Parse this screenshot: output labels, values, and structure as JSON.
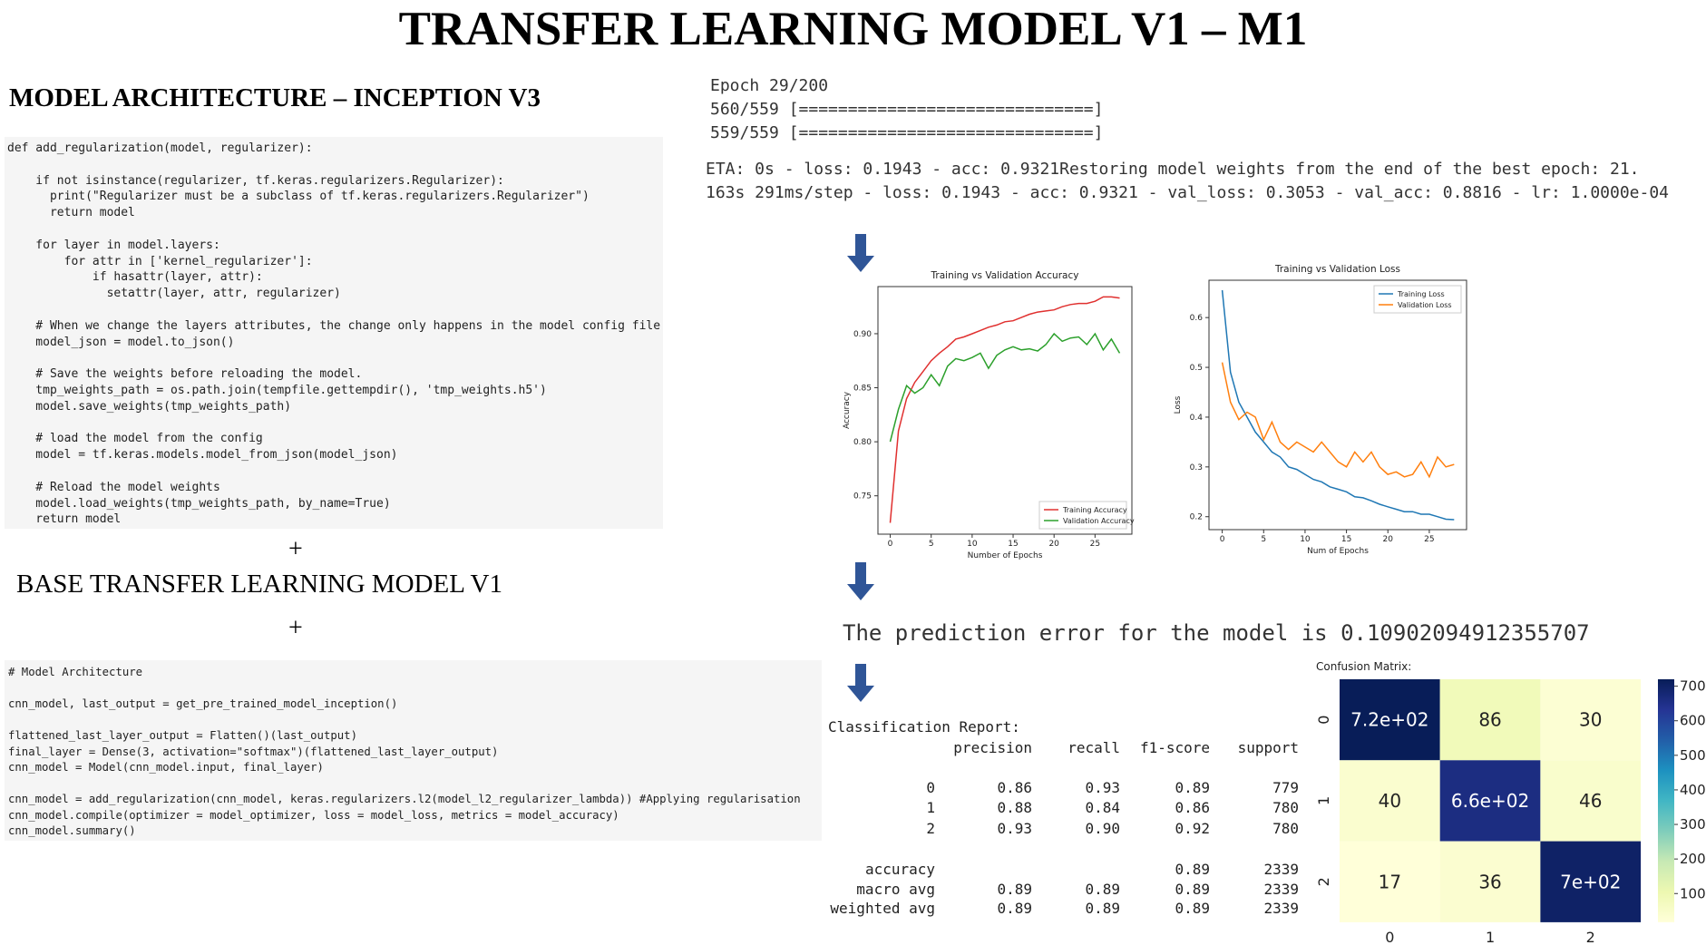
{
  "title": "TRANSFER LEARNING MODEL V1 – M1",
  "left": {
    "heading": "MODEL ARCHITECTURE – INCEPTION V3",
    "code1": "def add_regularization(model, regularizer):\n\n    if not isinstance(regularizer, tf.keras.regularizers.Regularizer):\n      print(\"Regularizer must be a subclass of tf.keras.regularizers.Regularizer\")\n      return model\n\n    for layer in model.layers:\n        for attr in ['kernel_regularizer']:\n            if hasattr(layer, attr):\n              setattr(layer, attr, regularizer)\n\n    # When we change the layers attributes, the change only happens in the model config file\n    model_json = model.to_json()\n\n    # Save the weights before reloading the model.\n    tmp_weights_path = os.path.join(tempfile.gettempdir(), 'tmp_weights.h5')\n    model.save_weights(tmp_weights_path)\n\n    # load the model from the config\n    model = tf.keras.models.model_from_json(model_json)\n\n    # Reload the model weights\n    model.load_weights(tmp_weights_path, by_name=True)\n    return model",
    "plus1": "+",
    "base": "BASE TRANSFER LEARNING MODEL V1",
    "plus2": "+",
    "code2": "# Model Architecture\n\ncnn_model, last_output = get_pre_trained_model_inception()\n\nflattened_last_layer_output = Flatten()(last_output)\nfinal_layer = Dense(3, activation=\"softmax\")(flattened_last_layer_output)\ncnn_model = Model(cnn_model.input, final_layer)\n\ncnn_model = add_regularization(cnn_model, keras.regularizers.l2(model_l2_regularizer_lambda)) #Applying regularisation\ncnn_model.compile(optimizer = model_optimizer, loss = model_loss, metrics = model_accuracy)\ncnn_model.summary()"
  },
  "log": [
    "Epoch 29/200",
    "560/559 [==============================]",
    "559/559 [==============================]",
    "ETA: 0s - loss: 0.1943 - acc: 0.9321Restoring model weights from the end of the best epoch: 21.",
    "163s 291ms/step - loss: 0.1943 - acc: 0.9321 - val_loss: 0.3053 - val_acc: 0.8816 - lr: 1.0000e-04"
  ],
  "prediction": "The prediction error for the model is 0.10902094912355707",
  "report": {
    "title": "Classification Report:",
    "columns": [
      "precision",
      "recall",
      "f1-score",
      "support"
    ],
    "rows": [
      [
        "0",
        "0.86",
        "0.93",
        "0.89",
        "779"
      ],
      [
        "1",
        "0.88",
        "0.84",
        "0.86",
        "780"
      ],
      [
        "2",
        "0.93",
        "0.90",
        "0.92",
        "780"
      ],
      [
        "accuracy",
        null,
        null,
        "0.89",
        "2339"
      ],
      [
        "macro avg",
        "0.89",
        "0.89",
        "0.89",
        "2339"
      ],
      [
        "weighted avg",
        "0.89",
        "0.89",
        "0.89",
        "2339"
      ]
    ]
  },
  "chart_data": [
    {
      "type": "line",
      "title": "Training vs Validation Accuracy",
      "x_label": "Number of Epochs",
      "y_label": "Accuracy",
      "x": [
        0,
        1,
        2,
        3,
        4,
        5,
        6,
        7,
        8,
        9,
        10,
        11,
        12,
        13,
        14,
        15,
        16,
        17,
        18,
        19,
        20,
        21,
        22,
        23,
        24,
        25,
        26,
        27,
        28
      ],
      "series": [
        {
          "name": "Training Accuracy",
          "color": "#e0302f",
          "values": [
            0.725,
            0.81,
            0.84,
            0.855,
            0.865,
            0.875,
            0.882,
            0.888,
            0.895,
            0.897,
            0.9,
            0.903,
            0.906,
            0.908,
            0.911,
            0.912,
            0.915,
            0.918,
            0.92,
            0.921,
            0.922,
            0.925,
            0.927,
            0.928,
            0.928,
            0.93,
            0.934,
            0.934,
            0.933
          ]
        },
        {
          "name": "Validation Accuracy",
          "color": "#2ca02c",
          "values": [
            0.8,
            0.83,
            0.852,
            0.845,
            0.85,
            0.862,
            0.852,
            0.87,
            0.877,
            0.875,
            0.878,
            0.882,
            0.868,
            0.88,
            0.885,
            0.888,
            0.885,
            0.886,
            0.884,
            0.89,
            0.9,
            0.893,
            0.896,
            0.897,
            0.89,
            0.9,
            0.885,
            0.895,
            0.882
          ]
        }
      ],
      "xlim": [
        -1.5,
        29.5
      ],
      "xticks": [
        0,
        5,
        10,
        15,
        20,
        25
      ],
      "ylim": [
        0.7145,
        0.9436
      ],
      "yticks": [
        0.75,
        {
          "value": 0.8,
          "label": "0.80"
        },
        0.85,
        {
          "value": 0.9,
          "label": "0.90"
        }
      ],
      "legend": "lower right"
    },
    {
      "type": "line",
      "title": "Training vs Validation Loss",
      "x_label": "Num of Epochs",
      "y_label": "Loss",
      "x": [
        0,
        1,
        2,
        3,
        4,
        5,
        6,
        7,
        8,
        9,
        10,
        11,
        12,
        13,
        14,
        15,
        16,
        17,
        18,
        19,
        20,
        21,
        22,
        23,
        24,
        25,
        26,
        27,
        28
      ],
      "series": [
        {
          "name": "Training Loss",
          "color": "#1f77b4",
          "values": [
            0.655,
            0.49,
            0.43,
            0.4,
            0.37,
            0.35,
            0.33,
            0.32,
            0.3,
            0.295,
            0.285,
            0.275,
            0.27,
            0.26,
            0.255,
            0.25,
            0.24,
            0.238,
            0.232,
            0.225,
            0.22,
            0.215,
            0.21,
            0.21,
            0.205,
            0.205,
            0.2,
            0.195,
            0.194
          ]
        },
        {
          "name": "Validation Loss",
          "color": "#ff7f0e",
          "values": [
            0.51,
            0.43,
            0.395,
            0.41,
            0.4,
            0.355,
            0.39,
            0.35,
            0.335,
            0.35,
            0.34,
            0.33,
            0.35,
            0.33,
            0.31,
            0.3,
            0.33,
            0.31,
            0.33,
            0.3,
            0.285,
            0.29,
            0.28,
            0.285,
            0.31,
            0.28,
            0.32,
            0.3,
            0.305
          ]
        }
      ],
      "xlim": [
        -1.6,
        29.5
      ],
      "xticks": [
        0,
        5,
        10,
        15,
        20,
        25
      ],
      "ylim": [
        0.174,
        0.675
      ],
      "yticks": [
        0.2,
        0.3,
        0.4,
        0.5,
        0.6
      ],
      "legend": "upper right"
    },
    {
      "type": "heatmap",
      "title": "Confusion Matrix:",
      "x_categories": [
        "0",
        "1",
        "2"
      ],
      "y_categories": [
        "0",
        "1",
        "2"
      ],
      "values": [
        [
          720,
          86,
          30
        ],
        [
          40,
          660,
          46
        ],
        [
          17,
          36,
          700
        ]
      ],
      "value_labels": [
        [
          "7.2e+02",
          "86",
          "30"
        ],
        [
          "40",
          "6.6e+02",
          "46"
        ],
        [
          "17",
          "36",
          "7e+02"
        ]
      ],
      "clim": [
        17,
        720
      ],
      "cticks": [
        100,
        200,
        300,
        400,
        500,
        600,
        700
      ],
      "colormap": "YlGnBu"
    }
  ]
}
